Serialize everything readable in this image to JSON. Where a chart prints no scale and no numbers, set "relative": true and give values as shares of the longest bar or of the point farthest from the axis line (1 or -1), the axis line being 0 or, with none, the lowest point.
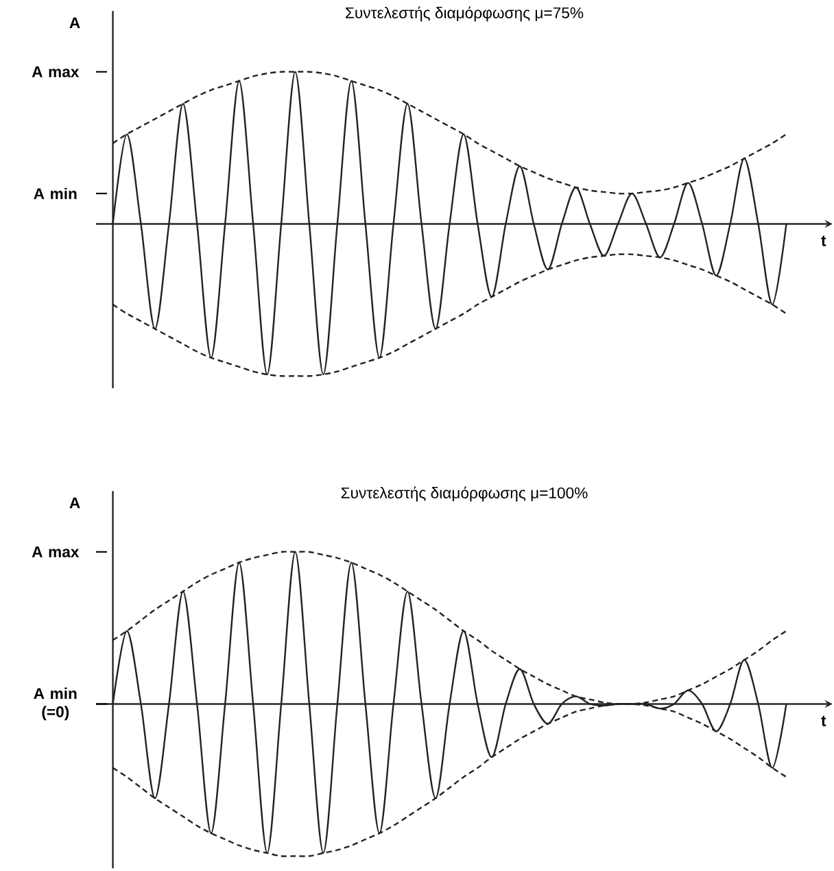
{
  "chart_data": [
    {
      "type": "line",
      "title": "Συντελεστής διαμόρφωσης μ=75%",
      "xlabel": "t",
      "ylabel": "A",
      "relative": true,
      "categories": [
        null,
        null,
        null,
        null,
        null,
        null,
        null,
        null,
        null,
        null,
        null,
        null,
        null,
        null,
        null,
        null,
        null,
        null,
        null,
        null,
        null,
        null,
        null,
        null,
        null,
        null,
        null,
        null,
        null,
        null,
        null,
        null,
        null,
        null,
        null,
        null,
        null,
        null,
        null,
        null,
        null,
        null,
        null,
        null,
        null,
        null,
        null,
        null,
        null
      ],
      "series": [
        {
          "color": "#222222",
          "line_style": "solid",
          "values": [
            0,
            0.59,
            0,
            -0.69,
            0,
            0.79,
            0,
            -0.88,
            0,
            0.94,
            0,
            -0.99,
            0,
            1.0,
            0,
            -0.99,
            0,
            0.94,
            0,
            -0.88,
            0,
            0.79,
            0,
            -0.69,
            0,
            0.59,
            0,
            -0.48,
            0,
            0.38,
            0,
            -0.3,
            0,
            0.24,
            0,
            -0.21,
            0,
            0.2,
            0,
            -0.22,
            0,
            0.27,
            0,
            -0.34,
            0,
            0.43,
            0,
            -0.53,
            0
          ]
        },
        {
          "color": "#222222",
          "line_style": "dashed",
          "values": [
            0.53,
            0.59,
            0.64,
            0.69,
            0.74,
            0.79,
            0.84,
            0.88,
            0.91,
            0.94,
            0.97,
            0.99,
            1.0,
            1.0,
            1.0,
            0.99,
            0.97,
            0.94,
            0.91,
            0.88,
            0.84,
            0.79,
            0.74,
            0.69,
            0.64,
            0.59,
            0.53,
            0.48,
            0.43,
            0.38,
            0.34,
            0.3,
            0.27,
            0.24,
            0.22,
            0.21,
            0.2,
            0.2,
            0.21,
            0.22,
            0.24,
            0.27,
            0.3,
            0.34,
            0.38,
            0.43,
            0.48,
            0.53,
            0.59
          ]
        },
        {
          "color": "#222222",
          "line_style": "dashed",
          "values": [
            -0.53,
            -0.59,
            -0.64,
            -0.69,
            -0.74,
            -0.79,
            -0.84,
            -0.88,
            -0.91,
            -0.94,
            -0.97,
            -0.99,
            -1.0,
            -1.0,
            -1.0,
            -0.99,
            -0.97,
            -0.94,
            -0.91,
            -0.88,
            -0.84,
            -0.79,
            -0.74,
            -0.69,
            -0.64,
            -0.59,
            -0.53,
            -0.48,
            -0.43,
            -0.38,
            -0.34,
            -0.3,
            -0.27,
            -0.24,
            -0.22,
            -0.21,
            -0.2,
            -0.2,
            -0.21,
            -0.22,
            -0.24,
            -0.27,
            -0.3,
            -0.34,
            -0.38,
            -0.43,
            -0.48,
            -0.53,
            -0.59
          ]
        }
      ],
      "annotations": [
        "A max",
        "A min"
      ]
    },
    {
      "type": "line",
      "title": "Συντελεστής διαμόρφωσης μ=100%",
      "xlabel": "t",
      "ylabel": "A",
      "relative": true,
      "categories": [
        null,
        null,
        null,
        null,
        null,
        null,
        null,
        null,
        null,
        null,
        null,
        null,
        null,
        null,
        null,
        null,
        null,
        null,
        null,
        null,
        null,
        null,
        null,
        null,
        null,
        null,
        null,
        null,
        null,
        null,
        null,
        null,
        null,
        null,
        null,
        null,
        null,
        null,
        null,
        null,
        null,
        null,
        null,
        null,
        null,
        null,
        null,
        null,
        null
      ],
      "series": [
        {
          "color": "#222222",
          "line_style": "solid",
          "values": [
            0,
            0.48,
            0,
            -0.62,
            0,
            0.74,
            0,
            -0.85,
            0,
            0.93,
            0,
            -0.98,
            0,
            1.0,
            0,
            -0.98,
            0,
            0.93,
            0,
            -0.85,
            0,
            0.74,
            0,
            -0.62,
            0,
            0.48,
            0,
            -0.35,
            0,
            0.23,
            0,
            -0.13,
            0,
            0.05,
            0,
            -0.01,
            0,
            0.0,
            0,
            -0.03,
            0,
            0.09,
            0,
            -0.18,
            0,
            0.29,
            0,
            -0.42,
            0
          ]
        },
        {
          "color": "#222222",
          "line_style": "dashed",
          "values": [
            0.42,
            0.48,
            0.55,
            0.62,
            0.68,
            0.74,
            0.8,
            0.85,
            0.89,
            0.93,
            0.96,
            0.98,
            1.0,
            1.0,
            1.0,
            0.98,
            0.96,
            0.93,
            0.89,
            0.85,
            0.8,
            0.74,
            0.68,
            0.62,
            0.55,
            0.48,
            0.42,
            0.35,
            0.29,
            0.23,
            0.18,
            0.13,
            0.09,
            0.05,
            0.03,
            0.01,
            0.0,
            0.0,
            0.01,
            0.03,
            0.05,
            0.09,
            0.13,
            0.18,
            0.23,
            0.29,
            0.35,
            0.42,
            0.48
          ]
        },
        {
          "color": "#222222",
          "line_style": "dashed",
          "values": [
            -0.42,
            -0.48,
            -0.55,
            -0.62,
            -0.68,
            -0.74,
            -0.8,
            -0.85,
            -0.89,
            -0.93,
            -0.96,
            -0.98,
            -1.0,
            -1.0,
            -1.0,
            -0.98,
            -0.96,
            -0.93,
            -0.89,
            -0.85,
            -0.8,
            -0.74,
            -0.68,
            -0.62,
            -0.55,
            -0.48,
            -0.42,
            -0.35,
            -0.29,
            -0.23,
            -0.18,
            -0.13,
            -0.09,
            -0.05,
            -0.03,
            -0.01,
            0.0,
            0.0,
            -0.01,
            -0.03,
            -0.05,
            -0.09,
            -0.13,
            -0.18,
            -0.23,
            -0.29,
            -0.35,
            -0.42,
            -0.48
          ]
        }
      ],
      "annotations": [
        "A max",
        "A min (=0)"
      ]
    }
  ]
}
